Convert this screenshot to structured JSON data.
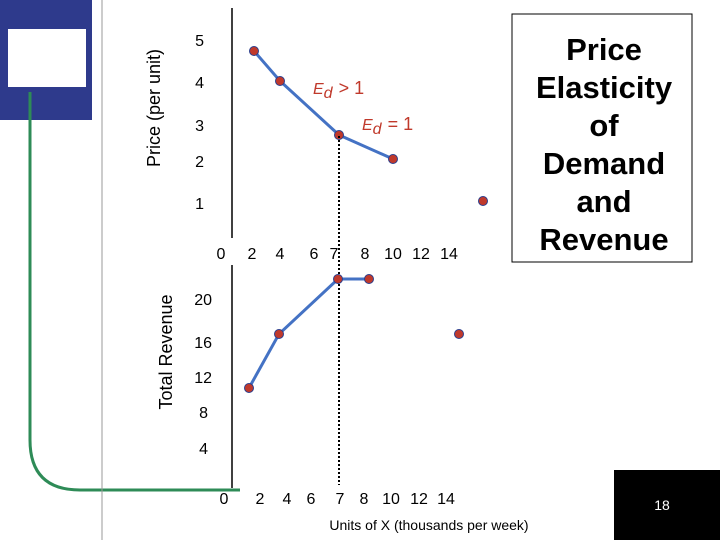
{
  "slide": {
    "title_lines": [
      "Price",
      "Elasticity",
      "of",
      "Demand",
      "and",
      "Revenue"
    ],
    "slide_number": "18"
  },
  "colors": {
    "line": "#4472c4",
    "point": "#c0392b",
    "annotation": "#c0392b",
    "sidebar": "#2e3a8c"
  },
  "annotations": {
    "elastic_main": "E",
    "elastic_sub": "d",
    "elastic_rest": "> 1",
    "unit_main": "E",
    "unit_sub": "d",
    "unit_rest": "= 1"
  },
  "chart_data": [
    {
      "type": "line",
      "ylabel": "Price (per unit)",
      "xlabel": "",
      "y_ticks": [
        "5",
        "4",
        "3",
        "2",
        "1"
      ],
      "x_ticks": [
        "0",
        "2",
        "4",
        "6",
        "7",
        "8",
        "10",
        "12",
        "14"
      ],
      "series": [
        {
          "x": [
            2,
            4,
            7,
            10
          ],
          "y": [
            5,
            4,
            3,
            2
          ]
        }
      ],
      "extra_points": [
        {
          "x": 16,
          "y": 1
        }
      ]
    },
    {
      "type": "line",
      "ylabel": "Total Revenue",
      "xlabel": "Units of X (thousands per week)",
      "y_ticks": [
        "20",
        "16",
        "12",
        "8",
        "4"
      ],
      "x_ticks": [
        "0",
        "2",
        "4",
        "6",
        "7",
        "8",
        "10",
        "12",
        "14"
      ],
      "series": [
        {
          "x": [
            2,
            4,
            7,
            8
          ],
          "y": [
            10,
            16,
            21,
            21
          ]
        }
      ],
      "extra_points": [
        {
          "x": 16,
          "y": 16
        }
      ]
    }
  ]
}
